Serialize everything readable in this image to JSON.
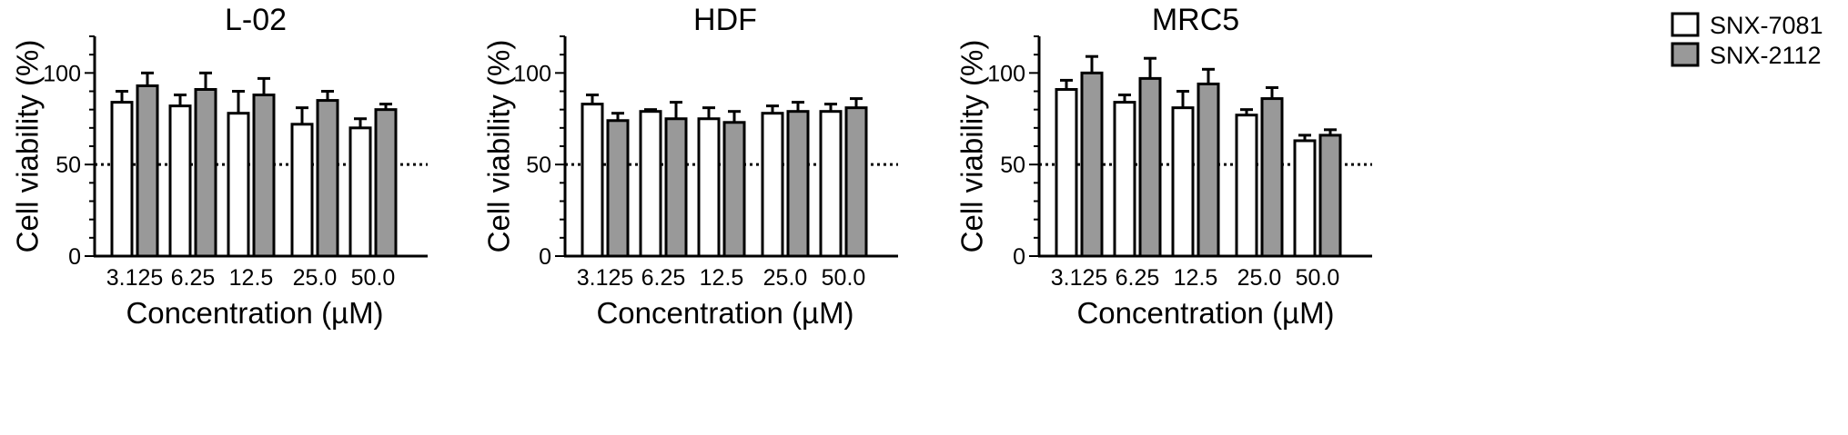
{
  "chart_data": [
    {
      "type": "bar",
      "title": "L-02",
      "xlabel": "Concentration (µM)",
      "ylabel": "Cell viability (%)",
      "categories": [
        "3.125",
        "6.25",
        "12.5",
        "25.0",
        "50.0"
      ],
      "ylim": [
        0,
        120
      ],
      "yticks": [
        "0",
        "50",
        "100"
      ],
      "reference_line": 50,
      "series": [
        {
          "name": "SNX-7081",
          "values": [
            84,
            82,
            78,
            72,
            70
          ],
          "errors": [
            6,
            6,
            12,
            9,
            5
          ]
        },
        {
          "name": "SNX-2112",
          "values": [
            93,
            91,
            88,
            85,
            80
          ],
          "errors": [
            7,
            9,
            9,
            5,
            3
          ]
        }
      ]
    },
    {
      "type": "bar",
      "title": "HDF",
      "xlabel": "Concentration (µM)",
      "ylabel": "Cell viability (%)",
      "categories": [
        "3.125",
        "6.25",
        "12.5",
        "25.0",
        "50.0"
      ],
      "ylim": [
        0,
        120
      ],
      "yticks": [
        "0",
        "50",
        "100"
      ],
      "reference_line": 50,
      "series": [
        {
          "name": "SNX-7081",
          "values": [
            83,
            79,
            75,
            78,
            79
          ],
          "errors": [
            5,
            1,
            6,
            4,
            4
          ]
        },
        {
          "name": "SNX-2112",
          "values": [
            74,
            75,
            73,
            79,
            81
          ],
          "errors": [
            4,
            9,
            6,
            5,
            5
          ]
        }
      ]
    },
    {
      "type": "bar",
      "title": "MRC5",
      "xlabel": "Concentration (µM)",
      "ylabel": "Cell viability (%)",
      "categories": [
        "3.125",
        "6.25",
        "12.5",
        "25.0",
        "50.0"
      ],
      "ylim": [
        0,
        120
      ],
      "yticks": [
        "0",
        "50",
        "100"
      ],
      "reference_line": 50,
      "series": [
        {
          "name": "SNX-7081",
          "values": [
            91,
            84,
            81,
            77,
            63
          ],
          "errors": [
            5,
            4,
            9,
            3,
            3
          ]
        },
        {
          "name": "SNX-2112",
          "values": [
            100,
            97,
            94,
            86,
            66
          ],
          "errors": [
            9,
            11,
            8,
            6,
            3
          ]
        }
      ]
    }
  ],
  "legend": {
    "placement": "top-right",
    "items": [
      {
        "label": "SNX-7081",
        "fill": "#ffffff"
      },
      {
        "label": "SNX-2112",
        "fill": "#999999"
      }
    ]
  },
  "colors": {
    "series_fill": [
      "#ffffff",
      "#999999"
    ],
    "stroke": "#000000"
  }
}
